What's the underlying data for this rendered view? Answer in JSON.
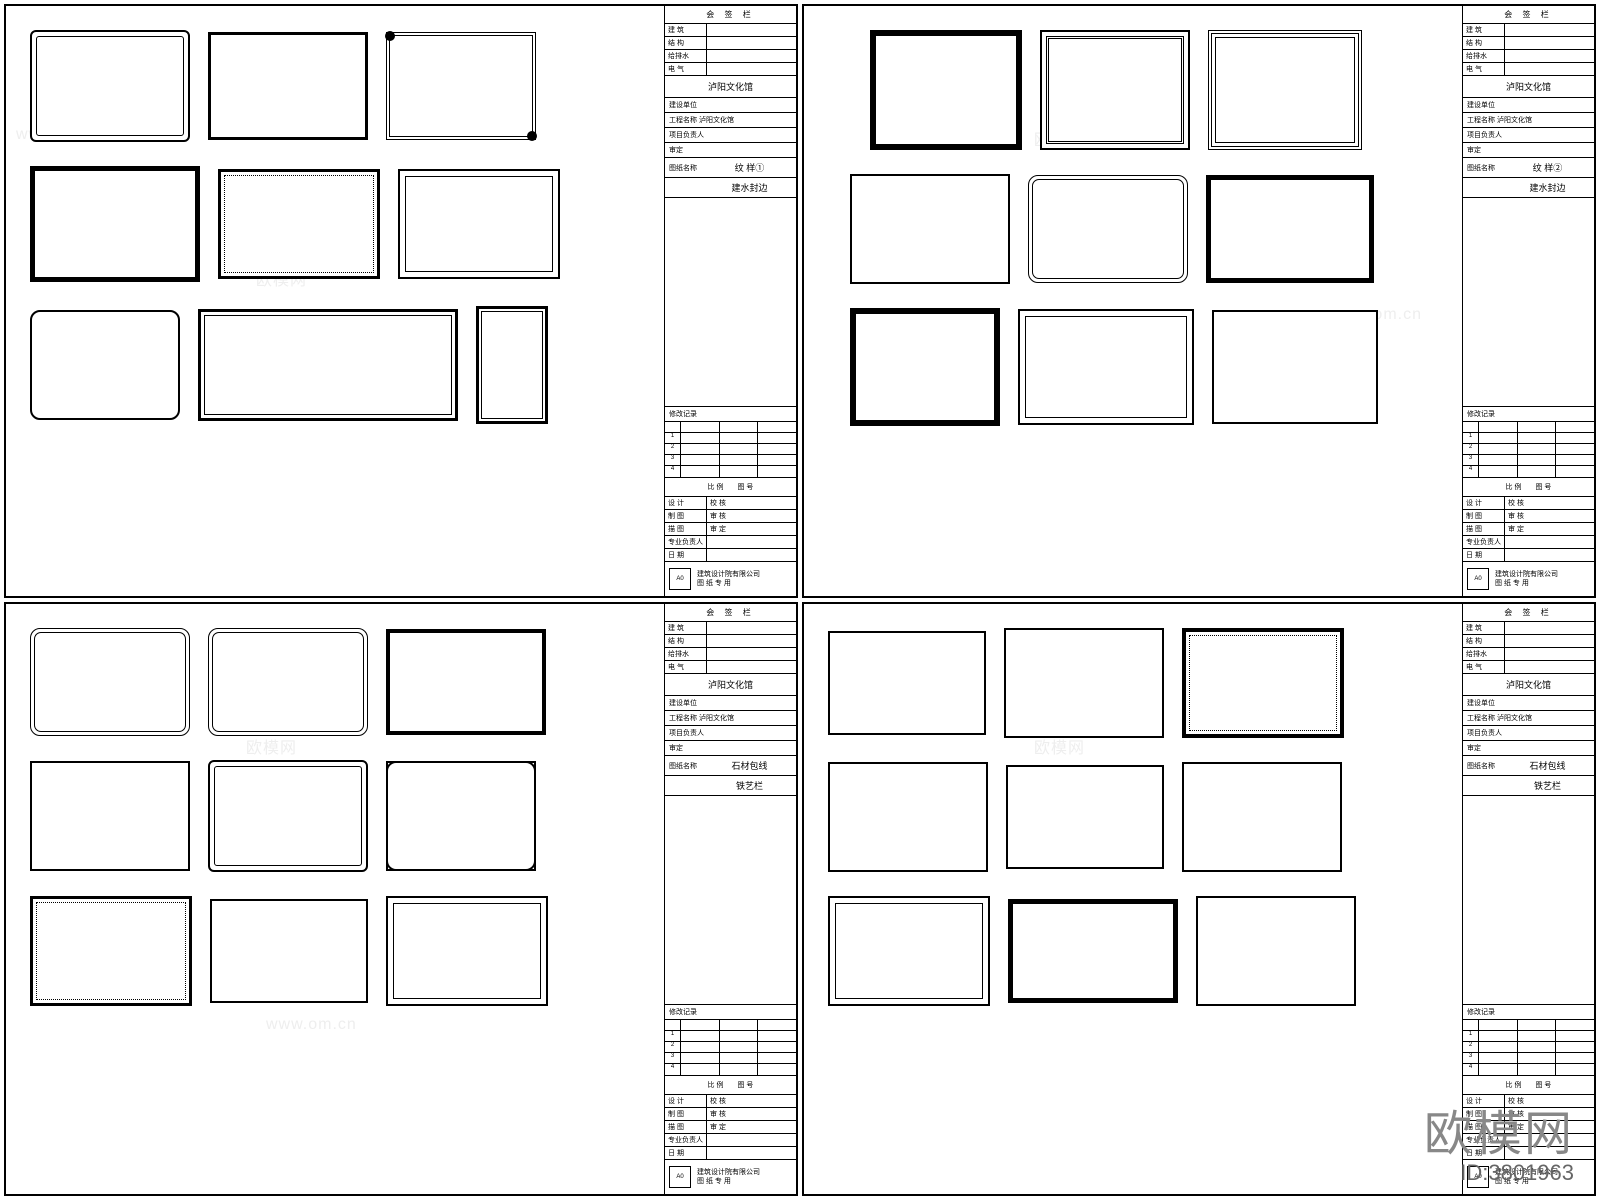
{
  "watermark_brand": "欧模网",
  "watermark_url": "www.om.cn",
  "overlay_id": "ID:3801963",
  "title_block": {
    "header": "会 签 栏",
    "rows_top": [
      {
        "l": "建 筑",
        "r": ""
      },
      {
        "l": "结 构",
        "r": ""
      },
      {
        "l": "给排水",
        "r": ""
      },
      {
        "l": "电 气",
        "r": ""
      }
    ],
    "project_title": "泸阳文化馆",
    "subrows": [
      {
        "k": "建设单位",
        "v": ""
      },
      {
        "k": "工程名称",
        "v": "泸阳文化馆"
      },
      {
        "k": "项目负责人",
        "v": ""
      },
      {
        "k": "审定",
        "v": ""
      }
    ],
    "drawing_label": "图纸名称",
    "sheets": [
      {
        "code": "纹 样①",
        "name": "建水封边"
      },
      {
        "code": "纹 样②",
        "name": "建水封边"
      },
      {
        "code": "石材包线",
        "name": "铁艺栏"
      },
      {
        "code": "石材包线",
        "name": "铁艺栏"
      }
    ],
    "rev_header": "修改记录",
    "rev_cols": [
      "",
      "",
      "",
      ""
    ],
    "rev_rows": [
      "1",
      "2",
      "3",
      "4"
    ],
    "scale_row": {
      "k": "比 例",
      "v": "图 号"
    },
    "info_rows": [
      {
        "l": "设 计",
        "r": "校 核"
      },
      {
        "l": "制 图",
        "r": "审 核"
      },
      {
        "l": "描 图",
        "r": "审 定"
      },
      {
        "l": "专业负责人",
        "r": ""
      },
      {
        "l": "日 期",
        "r": ""
      }
    ],
    "stamp_code": "A0",
    "stamp_text1": "建筑设计院有限公司",
    "stamp_text2": "图 纸 专 用"
  },
  "colors": {
    "line": "#000000",
    "bg": "#ffffff",
    "wm": "#eeeeee",
    "overlay": "#888888"
  }
}
